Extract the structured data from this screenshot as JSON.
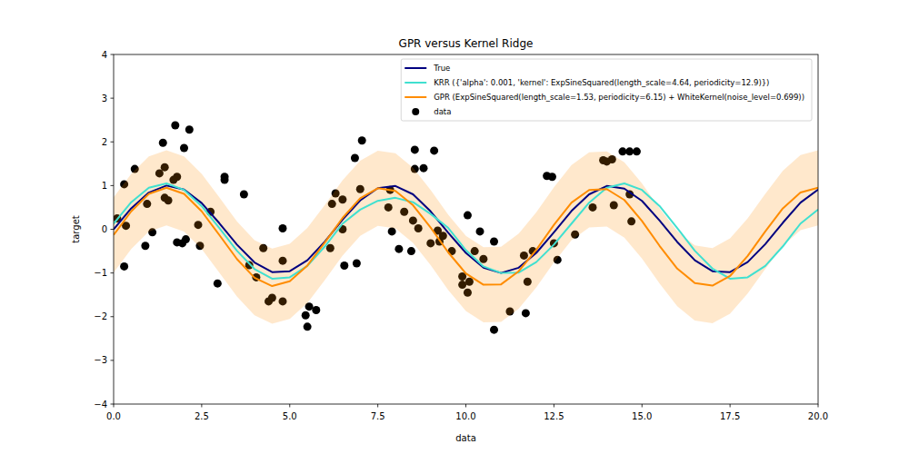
{
  "chart_data": {
    "type": "line",
    "title": "GPR versus Kernel Ridge",
    "x_label": "data",
    "y_label": "target",
    "xlim": [
      0,
      20
    ],
    "ylim": [
      -4,
      4
    ],
    "xticks": [
      {
        "value": 0,
        "label": "0.0"
      },
      2.5,
      {
        "value": 5,
        "label": "5.0"
      },
      7.5,
      {
        "value": 10,
        "label": "10.0"
      },
      12.5,
      {
        "value": 15,
        "label": "15.0"
      },
      17.5,
      {
        "value": 20,
        "label": "20.0"
      }
    ],
    "yticks": [
      {
        "value": -4,
        "label": "−4"
      },
      {
        "value": -3,
        "label": "−3"
      },
      {
        "value": -2,
        "label": "−2"
      },
      {
        "value": -1,
        "label": "−1"
      },
      0,
      1,
      2,
      3,
      4
    ],
    "grid": false,
    "legend": "upper right",
    "x": [
      0,
      0.5,
      1,
      1.5,
      2,
      2.5,
      3,
      3.5,
      4,
      4.5,
      5,
      5.5,
      6,
      6.5,
      7,
      7.5,
      8,
      8.5,
      9,
      9.5,
      10,
      10.5,
      11,
      11.5,
      12,
      12.5,
      13,
      13.5,
      14,
      14.5,
      15,
      15.5,
      16,
      16.5,
      17,
      17.5,
      18,
      18.5,
      19,
      19.5,
      20
    ],
    "series": [
      {
        "name": "True",
        "type": "line",
        "color": "#000080",
        "line_style": "solid",
        "values": [
          0.0,
          0.48,
          0.84,
          1.0,
          0.91,
          0.6,
          0.14,
          -0.35,
          -0.76,
          -0.98,
          -0.96,
          -0.71,
          -0.28,
          0.22,
          0.66,
          0.94,
          0.99,
          0.8,
          0.41,
          -0.08,
          -0.54,
          -0.88,
          -1.0,
          -0.88,
          -0.54,
          -0.07,
          0.42,
          0.8,
          0.99,
          0.93,
          0.65,
          0.2,
          -0.29,
          -0.71,
          -0.96,
          -0.98,
          -0.75,
          -0.34,
          0.15,
          0.61,
          0.91
        ]
      },
      {
        "name": "KRR ({'alpha': 0.001, 'kernel': ExpSineSquared(length_scale=4.64, periodicity=12.9)})",
        "type": "line",
        "color": "#40e0d0",
        "line_style": "solid",
        "values": [
          0.13,
          0.62,
          0.95,
          1.05,
          0.9,
          0.53,
          0.03,
          -0.49,
          -0.91,
          -1.13,
          -1.1,
          -0.84,
          -0.39,
          0.13,
          0.45,
          0.65,
          0.72,
          0.62,
          0.35,
          0.03,
          -0.48,
          -0.85,
          -1.0,
          -0.99,
          -0.75,
          -0.35,
          0.13,
          0.61,
          0.95,
          1.05,
          0.9,
          0.53,
          0.03,
          -0.49,
          -0.9,
          -1.13,
          -1.1,
          -0.84,
          -0.39,
          0.13,
          0.45
        ]
      },
      {
        "name": "GPR (ExpSineSquared(length_scale=1.53, periodicity=6.15) + WhiteKernel(noise_level=0.699))",
        "type": "line",
        "color": "#ff8c00",
        "line_style": "solid",
        "values": [
          -0.13,
          0.41,
          0.81,
          0.95,
          0.81,
          0.41,
          -0.13,
          -0.68,
          -1.11,
          -1.3,
          -1.19,
          -0.83,
          -0.3,
          0.26,
          0.71,
          0.94,
          0.88,
          0.55,
          0.04,
          -0.53,
          -1.01,
          -1.27,
          -1.26,
          -0.96,
          -0.47,
          0.1,
          0.61,
          0.9,
          0.92,
          0.67,
          0.19,
          -0.38,
          -0.9,
          -1.23,
          -1.29,
          -1.07,
          -0.61,
          -0.05,
          0.48,
          0.84,
          0.95
        ]
      },
      {
        "name": "data",
        "type": "scatter",
        "color": "#000000",
        "marker": "circle",
        "x": [
          0.1,
          0.3,
          0.35,
          0.3,
          0.6,
          0.9,
          0.95,
          1.1,
          1.3,
          1.4,
          1.45,
          1.45,
          1.55,
          1.7,
          1.75,
          1.8,
          1.8,
          1.95,
          2.0,
          2.05,
          2.15,
          2.4,
          2.45,
          2.75,
          2.95,
          3.15,
          3.15,
          3.7,
          3.85,
          4.05,
          4.25,
          4.4,
          4.5,
          4.8,
          4.8,
          4.8,
          5.45,
          5.5,
          5.55,
          5.75,
          6.15,
          6.2,
          6.3,
          6.5,
          6.5,
          6.55,
          6.85,
          6.9,
          7.0,
          7.05,
          7.8,
          7.85,
          7.9,
          8.1,
          8.25,
          8.45,
          8.5,
          8.55,
          8.55,
          8.65,
          8.8,
          9.0,
          9.1,
          9.2,
          9.25,
          9.35,
          9.6,
          9.9,
          9.9,
          10.05,
          10.05,
          10.1,
          10.25,
          10.4,
          10.5,
          10.8,
          10.8,
          11.25,
          11.65,
          11.7,
          11.75,
          11.9,
          12.3,
          12.45,
          12.5,
          12.6,
          13.1,
          13.6,
          13.9,
          14.0,
          14.15,
          14.2,
          14.45,
          14.65,
          14.65,
          14.7,
          14.85
        ],
        "values": [
          0.25,
          1.03,
          0.08,
          -0.85,
          1.38,
          -0.38,
          0.58,
          -0.07,
          1.28,
          1.98,
          1.42,
          0.72,
          0.66,
          1.13,
          2.38,
          1.2,
          -0.3,
          -0.32,
          1.86,
          -0.23,
          2.28,
          0.1,
          -0.38,
          0.4,
          -1.24,
          1.13,
          1.2,
          0.8,
          -0.82,
          -1.1,
          -0.43,
          -1.65,
          -1.57,
          -0.72,
          -1.65,
          0.02,
          -1.97,
          -2.23,
          -1.77,
          -1.85,
          -0.43,
          0.58,
          0.82,
          0.68,
          0.0,
          -0.83,
          1.63,
          -0.78,
          0.92,
          2.03,
          0.5,
          0.9,
          -0.05,
          -0.45,
          0.4,
          -0.5,
          0.2,
          1.82,
          1.38,
          0.02,
          1.4,
          -0.32,
          1.8,
          -0.03,
          -0.28,
          -0.15,
          -0.5,
          -1.27,
          -1.08,
          -1.45,
          0.32,
          -1.2,
          -0.5,
          -0.05,
          -0.68,
          -0.28,
          -2.3,
          -1.88,
          -0.6,
          -1.92,
          -1.2,
          -0.5,
          1.22,
          1.2,
          -0.32,
          -0.7,
          -0.12,
          0.5,
          1.58,
          1.55,
          1.6,
          0.55,
          1.78,
          1.78,
          0.8,
          0.18,
          1.78
        ]
      }
    ],
    "band": {
      "color": "#ff8c00",
      "upper": [
        0.73,
        1.27,
        1.67,
        1.81,
        1.67,
        1.27,
        0.73,
        0.18,
        -0.25,
        -0.44,
        -0.33,
        0.03,
        0.56,
        1.12,
        1.57,
        1.8,
        1.74,
        1.41,
        0.9,
        0.33,
        -0.15,
        -0.41,
        -0.4,
        -0.1,
        0.39,
        0.96,
        1.47,
        1.76,
        1.78,
        1.53,
        1.05,
        0.48,
        -0.04,
        -0.37,
        -0.43,
        -0.21,
        0.25,
        0.81,
        1.34,
        1.7,
        1.81
      ],
      "lower": [
        -0.99,
        -0.45,
        -0.05,
        0.09,
        -0.05,
        -0.45,
        -0.99,
        -1.54,
        -1.97,
        -2.16,
        -2.05,
        -1.69,
        -1.16,
        -0.6,
        -0.15,
        0.08,
        0.02,
        -0.31,
        -0.82,
        -1.39,
        -1.87,
        -2.13,
        -2.12,
        -1.82,
        -1.33,
        -0.76,
        -0.25,
        0.04,
        0.06,
        -0.19,
        -0.67,
        -1.24,
        -1.76,
        -2.09,
        -2.15,
        -1.93,
        -1.47,
        -0.91,
        -0.38,
        -0.02,
        0.09
      ]
    }
  }
}
